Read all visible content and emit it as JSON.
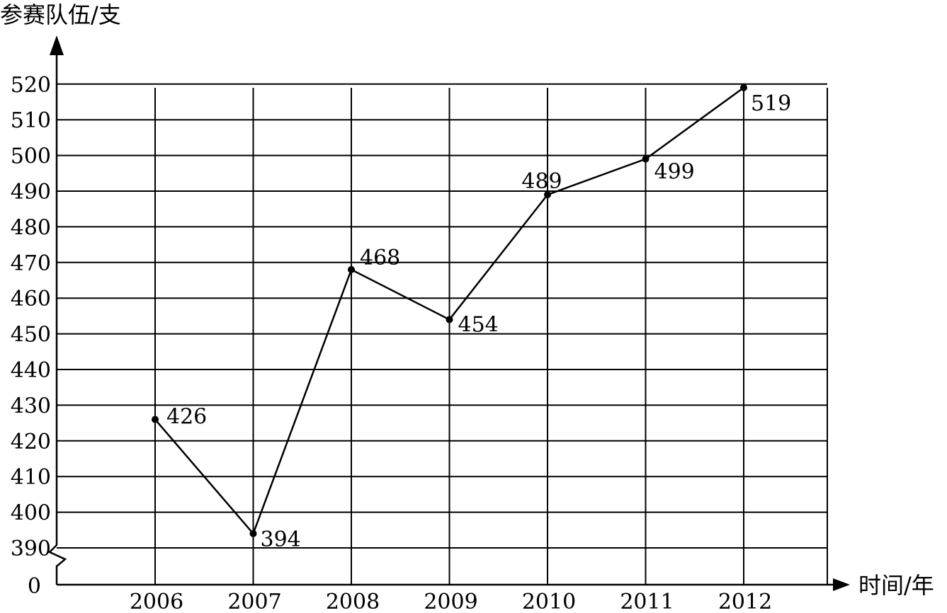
{
  "chart_data": {
    "type": "line",
    "ylabel": "参赛队伍/支",
    "xlabel": "时间/年",
    "categories": [
      "2006",
      "2007",
      "2008",
      "2009",
      "2010",
      "2011",
      "2012"
    ],
    "series": [
      {
        "values": [
          426,
          394,
          468,
          454,
          489,
          499,
          519
        ]
      }
    ],
    "data_labels": [
      "426",
      "394",
      "468",
      "454",
      "489",
      "499",
      "519"
    ],
    "yticks": [
      390,
      400,
      410,
      420,
      430,
      440,
      450,
      460,
      470,
      480,
      490,
      500,
      510,
      520
    ],
    "ytick_labels": [
      "390",
      "400",
      "410",
      "420",
      "430",
      "440",
      "450",
      "460",
      "470",
      "480",
      "490",
      "500",
      "510",
      "520"
    ],
    "origin_label": "0",
    "ylim": [
      380,
      520
    ],
    "axis_break": true,
    "grid": true,
    "legend": "none"
  }
}
